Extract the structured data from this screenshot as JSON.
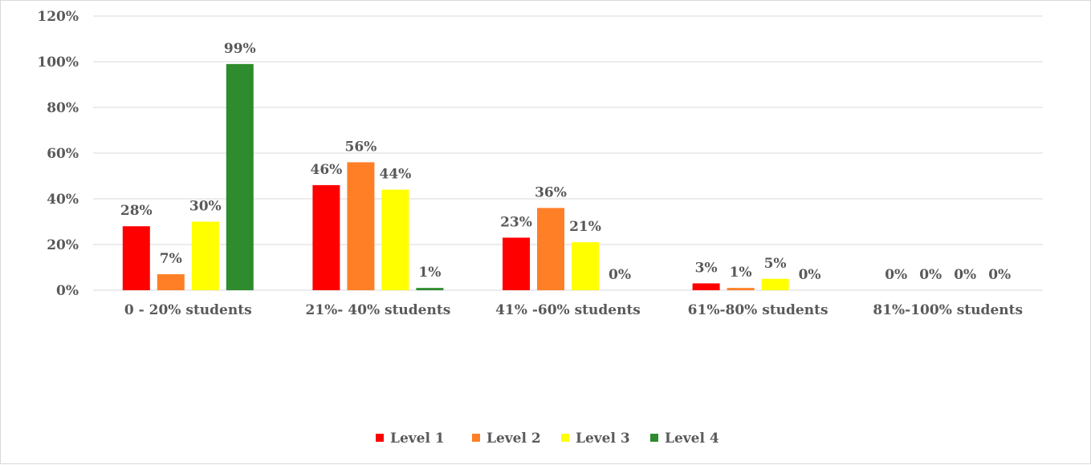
{
  "chart_data": {
    "type": "bar",
    "title": "",
    "xlabel": "",
    "ylabel": "",
    "ylim": [
      0,
      120
    ],
    "yticks": [
      "0%",
      "20%",
      "40%",
      "60%",
      "80%",
      "100%",
      "120%"
    ],
    "grid": true,
    "legend_position": "bottom",
    "categories": [
      "0  -   20% students",
      "21%-  40% students",
      "41% -60% students",
      "61%-80% students",
      "81%-100% students"
    ],
    "series": [
      {
        "name": "Level 1",
        "color": "#ff0000",
        "values": [
          28,
          46,
          23,
          3,
          0
        ],
        "labels": [
          "28%",
          "46%",
          "23%",
          "3%",
          "0%"
        ]
      },
      {
        "name": "Level 2",
        "color": "#ff7f27",
        "values": [
          7,
          56,
          36,
          1,
          0
        ],
        "labels": [
          "7%",
          "56%",
          "36%",
          "1%",
          "0%"
        ]
      },
      {
        "name": "Level 3",
        "color": "#ffff00",
        "values": [
          30,
          44,
          21,
          5,
          0
        ],
        "labels": [
          "30%",
          "44%",
          "21%",
          "5%",
          "0%"
        ]
      },
      {
        "name": "Level 4",
        "color": "#2e8b2e",
        "values": [
          99,
          1,
          0,
          0,
          0
        ],
        "labels": [
          "99%",
          "1%",
          "0%",
          "0%",
          "0%"
        ]
      }
    ]
  }
}
